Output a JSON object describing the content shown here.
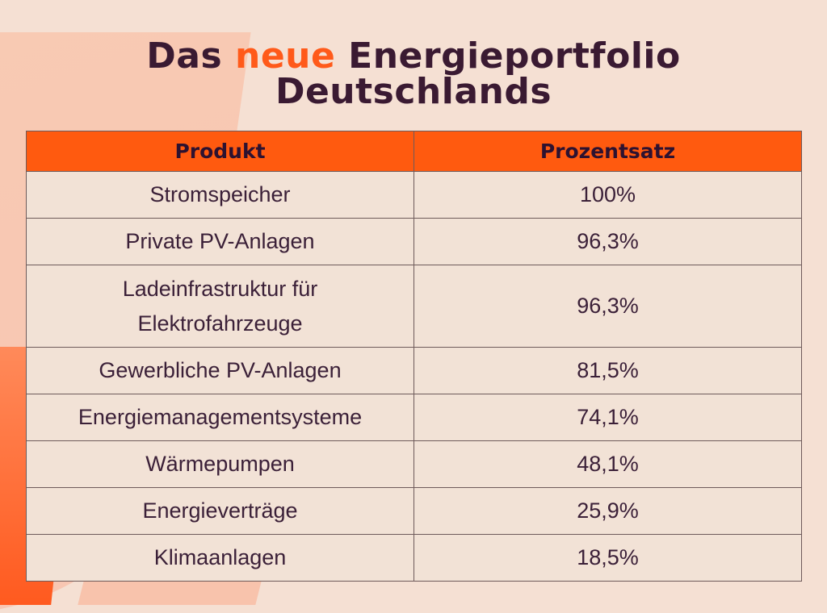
{
  "title": {
    "part1": "Das ",
    "accent": "neue",
    "part2": " Energieportfolio",
    "line2": "Deutschlands"
  },
  "colors": {
    "background": "#f5e0d3",
    "accent": "#ff5a1a",
    "header": "#ff5a0f",
    "text": "#3a1a32"
  },
  "chart_data": {
    "type": "table",
    "title": "Das neue Energieportfolio Deutschlands",
    "columns": [
      "Produkt",
      "Prozentsatz"
    ],
    "rows": [
      {
        "produkt": "Stromspeicher",
        "prozentsatz": "100%"
      },
      {
        "produkt": "Private PV-Anlagen",
        "prozentsatz": "96,3%"
      },
      {
        "produkt": "Ladeinfrastruktur für",
        "produkt_line2": "Elektrofahrzeuge",
        "prozentsatz": "96,3%"
      },
      {
        "produkt": "Gewerbliche PV-Anlagen",
        "prozentsatz": "81,5%"
      },
      {
        "produkt": "Energiemanagementsysteme",
        "prozentsatz": "74,1%"
      },
      {
        "produkt": "Wärmepumpen",
        "prozentsatz": "48,1%"
      },
      {
        "produkt": "Energieverträge",
        "prozentsatz": "25,9%"
      },
      {
        "produkt": "Klimaanlagen",
        "prozentsatz": "18,5%"
      }
    ]
  }
}
